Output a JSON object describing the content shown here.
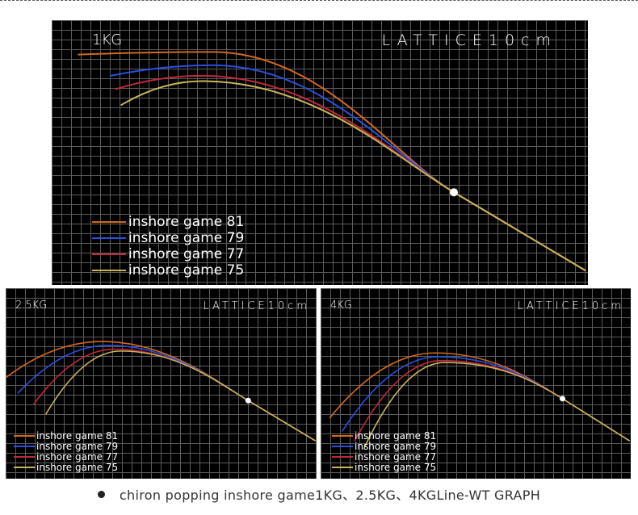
{
  "chart_data": [
    {
      "type": "line",
      "title": "1KG",
      "subtitle": "LATTICE10cm",
      "xlabel": "",
      "ylabel": "",
      "series": [
        {
          "name": "inshore game 81",
          "color": "#d2691e",
          "start": [
            0.05,
            0.13
          ],
          "peak": [
            0.3,
            0.12
          ]
        },
        {
          "name": "inshore game 79",
          "color": "#2b4fe0",
          "start": [
            0.11,
            0.21
          ],
          "peak": [
            0.3,
            0.17
          ]
        },
        {
          "name": "inshore game 77",
          "color": "#c0283c",
          "start": [
            0.12,
            0.26
          ],
          "peak": [
            0.28,
            0.21
          ]
        },
        {
          "name": "inshore game 75",
          "color": "#c8b656",
          "start": [
            0.13,
            0.32
          ],
          "peak": [
            0.28,
            0.23
          ]
        }
      ],
      "marker": [
        0.75,
        0.65
      ],
      "end": [
        0.995,
        0.945
      ]
    },
    {
      "type": "line",
      "title": "2.5KG",
      "subtitle": "LATTICE10cm",
      "xlabel": "",
      "ylabel": "",
      "series": [
        {
          "name": "inshore game 81",
          "color": "#d2691e",
          "start": [
            0.0,
            0.47
          ],
          "peak": [
            0.31,
            0.28
          ]
        },
        {
          "name": "inshore game 79",
          "color": "#2b4fe0",
          "start": [
            0.04,
            0.55
          ],
          "peak": [
            0.33,
            0.3
          ]
        },
        {
          "name": "inshore game 77",
          "color": "#c0283c",
          "start": [
            0.09,
            0.61
          ],
          "peak": [
            0.35,
            0.32
          ]
        },
        {
          "name": "inshore game 75",
          "color": "#c8b656",
          "start": [
            0.13,
            0.66
          ],
          "peak": [
            0.37,
            0.33
          ]
        }
      ],
      "marker": [
        0.78,
        0.59
      ],
      "end": [
        0.995,
        0.8
      ]
    },
    {
      "type": "line",
      "title": "4KG",
      "subtitle": "LATTICE10cm",
      "xlabel": "",
      "ylabel": "",
      "series": [
        {
          "name": "inshore game 81",
          "color": "#d2691e",
          "start": [
            0.03,
            0.68
          ],
          "peak": [
            0.37,
            0.34
          ]
        },
        {
          "name": "inshore game 79",
          "color": "#2b4fe0",
          "start": [
            0.07,
            0.75
          ],
          "peak": [
            0.38,
            0.36
          ]
        },
        {
          "name": "inshore game 77",
          "color": "#c0283c",
          "start": [
            0.11,
            0.8
          ],
          "peak": [
            0.39,
            0.38
          ]
        },
        {
          "name": "inshore game 75",
          "color": "#c8b656",
          "start": [
            0.14,
            0.84
          ],
          "peak": [
            0.4,
            0.39
          ]
        }
      ],
      "marker": [
        0.78,
        0.58
      ],
      "end": [
        0.995,
        0.8
      ]
    }
  ],
  "caption": {
    "bullet": "●",
    "text": "chiron popping inshore game1KG、2.5KG、4KGLine-WT GRAPH"
  }
}
